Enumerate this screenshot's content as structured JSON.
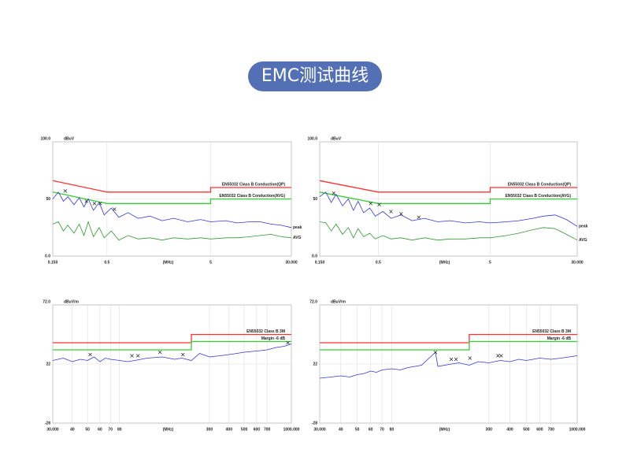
{
  "header": {
    "title": "EMC测试曲线"
  },
  "chart_data": [
    {
      "type": "line",
      "log_x": true,
      "grid": true,
      "y_label": "dBuV",
      "x_label": "(MHz)",
      "xlim": [
        0.15,
        30
      ],
      "xticks": [
        {
          "value": 0.15,
          "label": "0.150"
        },
        0.5,
        5,
        {
          "value": 30,
          "label": "30.000"
        }
      ],
      "ylim": [
        0,
        100
      ],
      "yticks": [
        {
          "value": 100,
          "label": "100.0"
        },
        50,
        {
          "value": 0,
          "label": "0.0"
        }
      ],
      "series": [
        {
          "name": "EN55032 Class B Conduction(QP)",
          "role": "limit",
          "color": "#ff3030",
          "x": [
            0.15,
            0.5,
            5,
            5,
            30
          ],
          "values": [
            66,
            56,
            56,
            60,
            60
          ]
        },
        {
          "name": "EN55032 Class B Conduction(AVG)",
          "role": "limit",
          "color": "#30d030",
          "x": [
            0.15,
            0.5,
            5,
            5,
            30
          ],
          "values": [
            56,
            46,
            46,
            50,
            50
          ]
        },
        {
          "name": "peak",
          "role": "trace",
          "color": "#3535dd",
          "x": [
            0.15,
            0.17,
            0.19,
            0.21,
            0.24,
            0.27,
            0.3,
            0.33,
            0.37,
            0.42,
            0.47,
            0.55,
            0.65,
            0.8,
            1,
            1.3,
            1.7,
            2.2,
            3,
            4,
            5,
            7,
            9,
            12,
            15,
            19,
            24,
            30
          ],
          "values": [
            50,
            56,
            48,
            52,
            45,
            51,
            43,
            50,
            40,
            47,
            36,
            42,
            34,
            38,
            33,
            35,
            31,
            33,
            30,
            32,
            30,
            31,
            29,
            30,
            30,
            28,
            27,
            25
          ]
        },
        {
          "name": "AVG",
          "role": "trace",
          "color": "#319a31",
          "x": [
            0.15,
            0.17,
            0.19,
            0.21,
            0.24,
            0.27,
            0.3,
            0.33,
            0.37,
            0.42,
            0.47,
            0.55,
            0.65,
            0.8,
            1,
            1.3,
            1.7,
            2.2,
            3,
            4,
            5,
            7,
            9,
            12,
            15,
            19,
            24,
            30
          ],
          "values": [
            28,
            30,
            22,
            27,
            20,
            28,
            18,
            30,
            17,
            25,
            16,
            22,
            14,
            18,
            15,
            16,
            14,
            16,
            15,
            16,
            15,
            16,
            16,
            17,
            18,
            19,
            17,
            16
          ]
        }
      ],
      "markers": [
        {
          "x": 0.198,
          "y": 57
        },
        {
          "x": 0.317,
          "y": 48
        },
        {
          "x": 0.378,
          "y": 46
        },
        {
          "x": 0.43,
          "y": 46
        },
        {
          "x": 0.59,
          "y": 41
        }
      ]
    },
    {
      "type": "line",
      "log_x": true,
      "grid": true,
      "y_label": "dBuV",
      "x_label": "(MHz)",
      "xlim": [
        0.15,
        30
      ],
      "xticks": [
        {
          "value": 0.15,
          "label": "0.150"
        },
        0.5,
        5,
        {
          "value": 30,
          "label": "30.000"
        }
      ],
      "ylim": [
        0,
        100
      ],
      "yticks": [
        {
          "value": 100,
          "label": "100.0"
        },
        50,
        {
          "value": 0,
          "label": "0.0"
        }
      ],
      "series": [
        {
          "name": "EN55032 Class B Conduction(QP)",
          "role": "limit",
          "color": "#ff3030",
          "x": [
            0.15,
            0.5,
            5,
            5,
            30
          ],
          "values": [
            66,
            56,
            56,
            60,
            60
          ]
        },
        {
          "name": "EN55032 Class B Conduction(AVG)",
          "role": "limit",
          "color": "#30d030",
          "x": [
            0.15,
            0.5,
            5,
            5,
            30
          ],
          "values": [
            56,
            46,
            46,
            50,
            50
          ]
        },
        {
          "name": "peak",
          "role": "trace",
          "color": "#3535dd",
          "x": [
            0.15,
            0.17,
            0.19,
            0.21,
            0.24,
            0.27,
            0.3,
            0.33,
            0.37,
            0.42,
            0.47,
            0.55,
            0.65,
            0.8,
            1,
            1.3,
            1.7,
            2.2,
            3,
            4,
            5,
            7,
            9,
            12,
            15,
            19,
            24,
            30
          ],
          "values": [
            52,
            56,
            47,
            54,
            44,
            50,
            40,
            48,
            38,
            42,
            35,
            39,
            33,
            36,
            31,
            33,
            30,
            31,
            29,
            30,
            29,
            30,
            31,
            33,
            35,
            36,
            32,
            26
          ]
        },
        {
          "name": "AVG",
          "role": "trace",
          "color": "#319a31",
          "x": [
            0.15,
            0.17,
            0.19,
            0.21,
            0.24,
            0.27,
            0.3,
            0.33,
            0.37,
            0.42,
            0.47,
            0.55,
            0.65,
            0.8,
            1,
            1.3,
            1.7,
            2.2,
            3,
            4,
            5,
            7,
            9,
            12,
            15,
            19,
            24,
            30
          ],
          "values": [
            30,
            29,
            22,
            28,
            19,
            25,
            16,
            24,
            17,
            20,
            15,
            18,
            15,
            16,
            14,
            16,
            14,
            15,
            15,
            16,
            16,
            18,
            20,
            23,
            25,
            24,
            19,
            14
          ]
        }
      ],
      "markers": [
        {
          "x": 0.2,
          "y": 55
        },
        {
          "x": 0.428,
          "y": 46
        },
        {
          "x": 0.51,
          "y": 45
        },
        {
          "x": 0.65,
          "y": 39
        },
        {
          "x": 0.8,
          "y": 37
        },
        {
          "x": 1.15,
          "y": 34
        }
      ]
    },
    {
      "type": "line",
      "log_x": true,
      "grid": true,
      "y_label": "dBuV/m",
      "x_label": "(MHz)",
      "xlim": [
        30,
        1000
      ],
      "xticks": [
        {
          "value": 30,
          "label": "30.000"
        },
        40,
        50,
        60,
        70,
        80,
        300,
        400,
        500,
        600,
        700,
        {
          "value": 1000,
          "label": "1000.000"
        }
      ],
      "ylim": [
        -28,
        72
      ],
      "yticks": [
        {
          "value": 72,
          "label": "72.0"
        },
        22,
        -28
      ],
      "series": [
        {
          "name": "EN55032 Class B 3M",
          "role": "limit",
          "color": "#ff3030",
          "x": [
            30,
            230,
            230,
            1000
          ],
          "values": [
            40,
            40,
            47,
            47
          ]
        },
        {
          "name": "Margin -6 dB",
          "role": "limit",
          "color": "#30d030",
          "x": [
            30,
            230,
            230,
            1000
          ],
          "values": [
            34,
            34,
            41,
            41
          ]
        },
        {
          "role": "trace",
          "color": "#3535dd",
          "x": [
            30,
            35,
            40,
            45,
            50,
            55,
            60,
            65,
            70,
            80,
            90,
            100,
            120,
            150,
            180,
            200,
            230,
            260,
            300,
            350,
            400,
            450,
            500,
            600,
            700,
            800,
            900,
            1000
          ],
          "values": [
            25,
            27,
            24,
            26,
            25,
            28,
            24,
            27,
            26,
            25,
            24,
            25,
            27,
            28,
            26,
            27,
            25,
            31,
            28,
            29,
            30,
            31,
            32,
            33,
            34,
            36,
            37,
            39
          ]
        }
      ],
      "markers": [
        {
          "x": 52,
          "y": 30
        },
        {
          "x": 96,
          "y": 29
        },
        {
          "x": 105,
          "y": 29
        },
        {
          "x": 145,
          "y": 32
        },
        {
          "x": 203,
          "y": 30
        },
        {
          "x": 950,
          "y": 40
        }
      ]
    },
    {
      "type": "line",
      "log_x": true,
      "grid": true,
      "y_label": "dBuV/m",
      "x_label": "(MHz)",
      "xlim": [
        30,
        1000
      ],
      "xticks": [
        {
          "value": 30,
          "label": "30.000"
        },
        40,
        50,
        60,
        70,
        80,
        300,
        400,
        500,
        600,
        700,
        {
          "value": 1000,
          "label": "1000.000"
        }
      ],
      "ylim": [
        -28,
        72
      ],
      "yticks": [
        {
          "value": 72,
          "label": "72.0"
        },
        22,
        -28
      ],
      "series": [
        {
          "name": "EN55032 Class B 3M",
          "role": "limit",
          "color": "#ff3030",
          "x": [
            30,
            230,
            230,
            1000
          ],
          "values": [
            40,
            40,
            47,
            47
          ]
        },
        {
          "name": "Margin -6 dB",
          "role": "limit",
          "color": "#30d030",
          "x": [
            30,
            230,
            230,
            1000
          ],
          "values": [
            34,
            34,
            41,
            41
          ]
        },
        {
          "role": "trace",
          "color": "#3535dd",
          "x": [
            30,
            35,
            40,
            45,
            50,
            55,
            60,
            65,
            70,
            80,
            90,
            100,
            120,
            145,
            150,
            180,
            200,
            230,
            260,
            300,
            350,
            400,
            450,
            500,
            600,
            700,
            800,
            1000
          ],
          "values": [
            10,
            11,
            12,
            11,
            13,
            14,
            16,
            15,
            17,
            18,
            17,
            19,
            21,
            32,
            20,
            22,
            23,
            21,
            24,
            23,
            25,
            24,
            26,
            25,
            27,
            26,
            27,
            29
          ]
        }
      ],
      "markers": [
        {
          "x": 145,
          "y": 32
        },
        {
          "x": 180,
          "y": 26
        },
        {
          "x": 192,
          "y": 26
        },
        {
          "x": 232,
          "y": 27
        },
        {
          "x": 340,
          "y": 29
        },
        {
          "x": 355,
          "y": 29
        }
      ]
    }
  ]
}
